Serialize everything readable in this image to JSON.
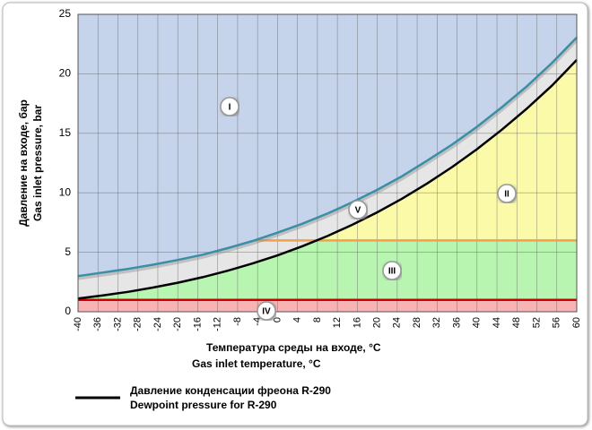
{
  "chart_data": {
    "type": "line",
    "x_label": "Температура среды на входе, °C",
    "x_label_en": "Gas inlet temperature, °C",
    "y_label": "Давление на входе, бар",
    "y_label_en": "Gas inlet pressure, bar",
    "x": [
      -40,
      -35,
      -30,
      -25,
      -20,
      -15,
      -10,
      -5,
      0,
      5,
      10,
      15,
      20,
      25,
      30,
      35,
      40,
      45,
      50,
      55,
      60
    ],
    "series": [
      {
        "name": "Давление конденсации фреона R-290",
        "name_en": "Dewpoint pressure for R-290",
        "color": "#000000",
        "values": [
          1.11,
          1.37,
          1.67,
          2.03,
          2.44,
          2.91,
          3.45,
          4.06,
          4.74,
          5.51,
          6.36,
          7.31,
          8.36,
          9.51,
          10.78,
          12.16,
          13.67,
          15.31,
          17.08,
          19.0,
          21.17
        ]
      },
      {
        "color": "#3a8fa6",
        "values": [
          3.0,
          3.3,
          3.6,
          3.95,
          4.35,
          4.8,
          5.35,
          5.95,
          6.65,
          7.4,
          8.25,
          9.2,
          10.25,
          11.4,
          12.7,
          14.05,
          15.55,
          17.2,
          18.95,
          20.9,
          23.05
        ]
      }
    ],
    "thresholds": [
      {
        "value": 6,
        "color": "#f0a050"
      },
      {
        "value": 1,
        "color": "#cc0000"
      }
    ],
    "region_colors": [
      "#c5d4ea",
      "#fbfaa8",
      "#b8f5b0",
      "#f8b4b4",
      "#e6e6e6"
    ],
    "annotations": [
      "I",
      "II",
      "III",
      "IV",
      "V"
    ],
    "xlim": [
      -40,
      60
    ],
    "ylim": [
      0,
      25
    ],
    "xticks": [
      -40,
      -36,
      -32,
      -28,
      -24,
      -20,
      -16,
      -12,
      -8,
      -4,
      0,
      4,
      8,
      12,
      16,
      20,
      24,
      28,
      32,
      36,
      40,
      44,
      48,
      52,
      56,
      60
    ],
    "yticks": [
      0,
      5,
      10,
      15,
      20,
      25
    ],
    "grid": true
  }
}
